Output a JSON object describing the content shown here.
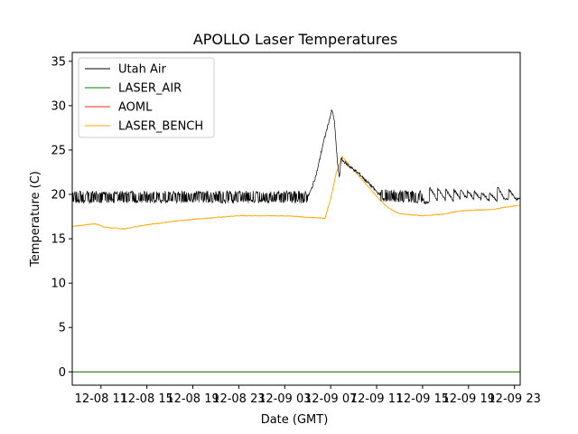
{
  "chart_data": {
    "type": "line",
    "title": "APOLLO Laser Temperatures",
    "xlabel": "Date (GMT)",
    "ylabel": "Temperature (C)",
    "x_range": [
      "2018-12-08 08:30",
      "2018-12-09 23:30"
    ],
    "xlim_hours": [
      -2.5,
      36.5
    ],
    "ylim": [
      -1.5,
      36
    ],
    "x_ticks": [
      {
        "label": "12-08 11",
        "hour": 0
      },
      {
        "label": "12-08 15",
        "hour": 4
      },
      {
        "label": "12-08 19",
        "hour": 8
      },
      {
        "label": "12-08 23",
        "hour": 12
      },
      {
        "label": "12-09 03",
        "hour": 16
      },
      {
        "label": "12-09 07",
        "hour": 20
      },
      {
        "label": "12-09 11",
        "hour": 24
      },
      {
        "label": "12-09 15",
        "hour": 28
      },
      {
        "label": "12-09 19",
        "hour": 32
      },
      {
        "label": "12-09 23",
        "hour": 36
      }
    ],
    "y_ticks": [
      0,
      5,
      10,
      15,
      20,
      25,
      30,
      35
    ],
    "legend_position": "top-left",
    "grid": false,
    "series": [
      {
        "name": "Utah Air",
        "color": "#000000",
        "noise": 0.5,
        "points": [
          [
            -2.5,
            19.7
          ],
          [
            18.0,
            19.7
          ],
          [
            18.3,
            20.5
          ],
          [
            18.8,
            22.5
          ],
          [
            19.3,
            25.5
          ],
          [
            19.8,
            28.0
          ],
          [
            20.1,
            29.5
          ],
          [
            20.3,
            28.5
          ],
          [
            20.6,
            23.5
          ],
          [
            20.75,
            21.8
          ],
          [
            20.9,
            24.0
          ],
          [
            21.5,
            23.3
          ],
          [
            22.5,
            22.3
          ],
          [
            23.5,
            21.0
          ],
          [
            24.3,
            19.9
          ],
          [
            28.0,
            19.7
          ],
          [
            36.5,
            19.7
          ]
        ]
      },
      {
        "name": "LASER_AIR",
        "color": "#008000",
        "noise": 0,
        "points": [
          [
            -2.5,
            0
          ],
          [
            36.5,
            0
          ]
        ]
      },
      {
        "name": "AOML",
        "color": "#e8301a",
        "noise": 0,
        "points": [
          [
            -2.5,
            0
          ],
          [
            36.5,
            0
          ]
        ]
      },
      {
        "name": "LASER_BENCH",
        "color": "#ffa500",
        "noise": 0.05,
        "points": [
          [
            -2.5,
            16.4
          ],
          [
            -0.5,
            16.7
          ],
          [
            0.3,
            16.3
          ],
          [
            2.0,
            16.1
          ],
          [
            4.0,
            16.6
          ],
          [
            8.0,
            17.2
          ],
          [
            12.0,
            17.6
          ],
          [
            16.0,
            17.6
          ],
          [
            19.5,
            17.3
          ],
          [
            20.0,
            19.5
          ],
          [
            20.5,
            22.5
          ],
          [
            21.0,
            24.3
          ],
          [
            21.5,
            23.5
          ],
          [
            22.5,
            22.0
          ],
          [
            24.0,
            19.8
          ],
          [
            25.0,
            18.5
          ],
          [
            26.0,
            17.8
          ],
          [
            28.0,
            17.6
          ],
          [
            30.0,
            17.8
          ],
          [
            31.0,
            18.1
          ],
          [
            32.0,
            18.2
          ],
          [
            34.0,
            18.3
          ],
          [
            36.5,
            18.8
          ]
        ]
      }
    ],
    "utah_air_late_spikes": [
      [
        28.1,
        19.0
      ],
      [
        28.6,
        20.8
      ],
      [
        29.3,
        20.8
      ],
      [
        30.0,
        20.6
      ],
      [
        30.7,
        20.6
      ],
      [
        31.3,
        20.5
      ],
      [
        31.9,
        20.4
      ],
      [
        32.5,
        20.3
      ],
      [
        33.1,
        20.3
      ],
      [
        33.8,
        20.2
      ],
      [
        34.5,
        20.9
      ],
      [
        35.5,
        20.6
      ]
    ]
  }
}
